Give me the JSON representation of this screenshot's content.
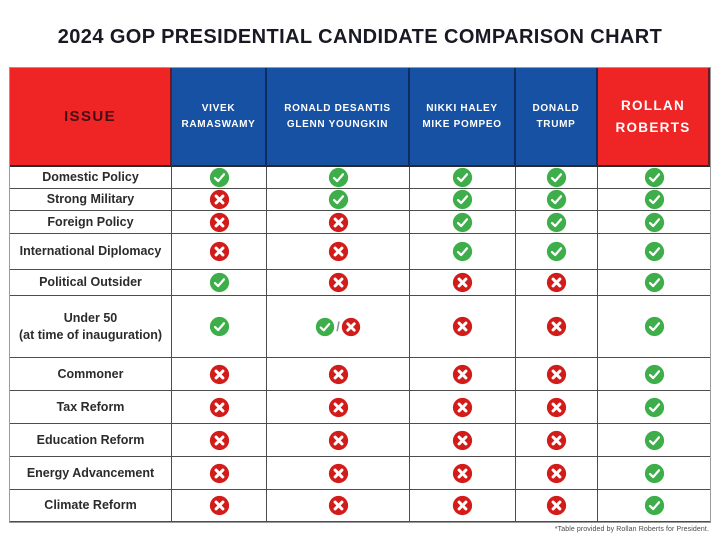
{
  "title": "2024 GOP PRESIDENTIAL CANDIDATE COMPARISON CHART",
  "footnote": "*Table provided by Rollan Roberts for President.",
  "colors": {
    "header_red": "#ee2425",
    "header_blue": "#1751a3",
    "check_green": "#3dae49",
    "cross_red": "#d21c1a",
    "issue_header_text": "#451015",
    "candidate_text": "#ffffff",
    "title_text": "#191923"
  },
  "table": {
    "issue_header": "ISSUE",
    "columns": [
      {
        "label_lines": [
          "VIVEK",
          "RAMASWAMY"
        ],
        "style": "blue"
      },
      {
        "label_lines": [
          "RONALD DESANTIS",
          "GLENN YOUNGKIN"
        ],
        "style": "blue"
      },
      {
        "label_lines": [
          "NIKKI HALEY",
          "MIKE POMPEO"
        ],
        "style": "blue"
      },
      {
        "label_lines": [
          "DONALD",
          "TRUMP"
        ],
        "style": "blue"
      },
      {
        "label_lines": [
          "ROLLAN",
          "ROBERTS"
        ],
        "style": "red"
      }
    ],
    "rows": [
      {
        "issue_lines": [
          "Domestic Policy"
        ],
        "values": [
          "check",
          "check",
          "check",
          "check",
          "check"
        ]
      },
      {
        "issue_lines": [
          "Strong Military"
        ],
        "values": [
          "cross",
          "check",
          "check",
          "check",
          "check"
        ]
      },
      {
        "issue_lines": [
          "Foreign Policy"
        ],
        "values": [
          "cross",
          "cross",
          "check",
          "check",
          "check"
        ]
      },
      {
        "issue_lines": [
          "International Diplomacy"
        ],
        "values": [
          "cross",
          "cross",
          "check",
          "check",
          "check"
        ]
      },
      {
        "issue_lines": [
          "Political Outsider"
        ],
        "values": [
          "check",
          "cross",
          "cross",
          "cross",
          "check"
        ]
      },
      {
        "issue_lines": [
          "Under 50",
          "(at time of inauguration)"
        ],
        "values": [
          "check",
          "check_cross",
          "cross",
          "cross",
          "check"
        ]
      },
      {
        "issue_lines": [
          "Commoner"
        ],
        "values": [
          "cross",
          "cross",
          "cross",
          "cross",
          "check"
        ]
      },
      {
        "issue_lines": [
          "Tax Reform"
        ],
        "values": [
          "cross",
          "cross",
          "cross",
          "cross",
          "check"
        ]
      },
      {
        "issue_lines": [
          "Education Reform"
        ],
        "values": [
          "cross",
          "cross",
          "cross",
          "cross",
          "check"
        ]
      },
      {
        "issue_lines": [
          "Energy Advancement"
        ],
        "values": [
          "cross",
          "cross",
          "cross",
          "cross",
          "check"
        ]
      },
      {
        "issue_lines": [
          "Climate Reform"
        ],
        "values": [
          "cross",
          "cross",
          "cross",
          "cross",
          "check"
        ]
      }
    ]
  },
  "chart_data": {
    "type": "table",
    "title": "2024 GOP PRESIDENTIAL CANDIDATE COMPARISON CHART",
    "columns": [
      "ISSUE",
      "VIVEK RAMASWAMY",
      "RONALD DESANTIS / GLENN YOUNGKIN",
      "NIKKI HALEY / MIKE POMPEO",
      "DONALD TRUMP",
      "ROLLAN ROBERTS"
    ],
    "rows": [
      [
        "Domestic Policy",
        "yes",
        "yes",
        "yes",
        "yes",
        "yes"
      ],
      [
        "Strong Military",
        "no",
        "yes",
        "yes",
        "yes",
        "yes"
      ],
      [
        "Foreign Policy",
        "no",
        "no",
        "yes",
        "yes",
        "yes"
      ],
      [
        "International Diplomacy",
        "no",
        "no",
        "yes",
        "yes",
        "yes"
      ],
      [
        "Political Outsider",
        "yes",
        "no",
        "no",
        "no",
        "yes"
      ],
      [
        "Under 50 (at time of inauguration)",
        "yes",
        "yes/no",
        "no",
        "no",
        "yes"
      ],
      [
        "Commoner",
        "no",
        "no",
        "no",
        "no",
        "yes"
      ],
      [
        "Tax Reform",
        "no",
        "no",
        "no",
        "no",
        "yes"
      ],
      [
        "Education Reform",
        "no",
        "no",
        "no",
        "no",
        "yes"
      ],
      [
        "Energy Advancement",
        "no",
        "no",
        "no",
        "no",
        "yes"
      ],
      [
        "Climate Reform",
        "no",
        "no",
        "no",
        "no",
        "yes"
      ]
    ],
    "footnote": "*Table provided by Rollan Roberts for President."
  }
}
